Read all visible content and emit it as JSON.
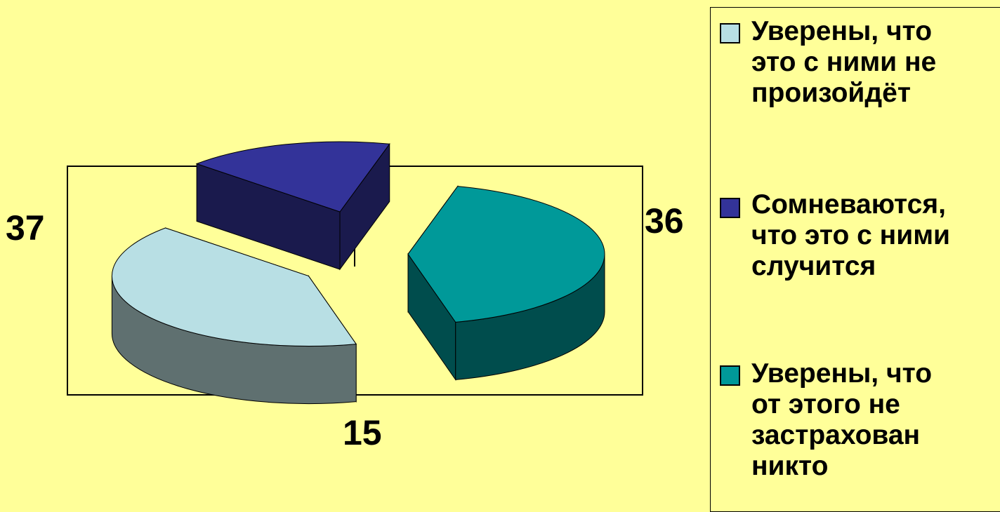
{
  "chart_data": {
    "type": "pie",
    "variant": "3d-exploded",
    "categories": [
      "Уверены, что\nэто с ними не\nпроизойдёт",
      "Сомневаются,\nчто это с ними\nслучится",
      "Уверены, что\nот этого не\nзастрахован\nникто"
    ],
    "values": [
      36,
      15,
      37
    ],
    "value_labels": [
      "36",
      "15",
      "37"
    ],
    "colors": [
      "#b8dfe4",
      "#333399",
      "#009999"
    ],
    "side_colors": [
      "#5f7070",
      "#1a1a4d",
      "#004d4d"
    ],
    "legend_position": "right"
  }
}
